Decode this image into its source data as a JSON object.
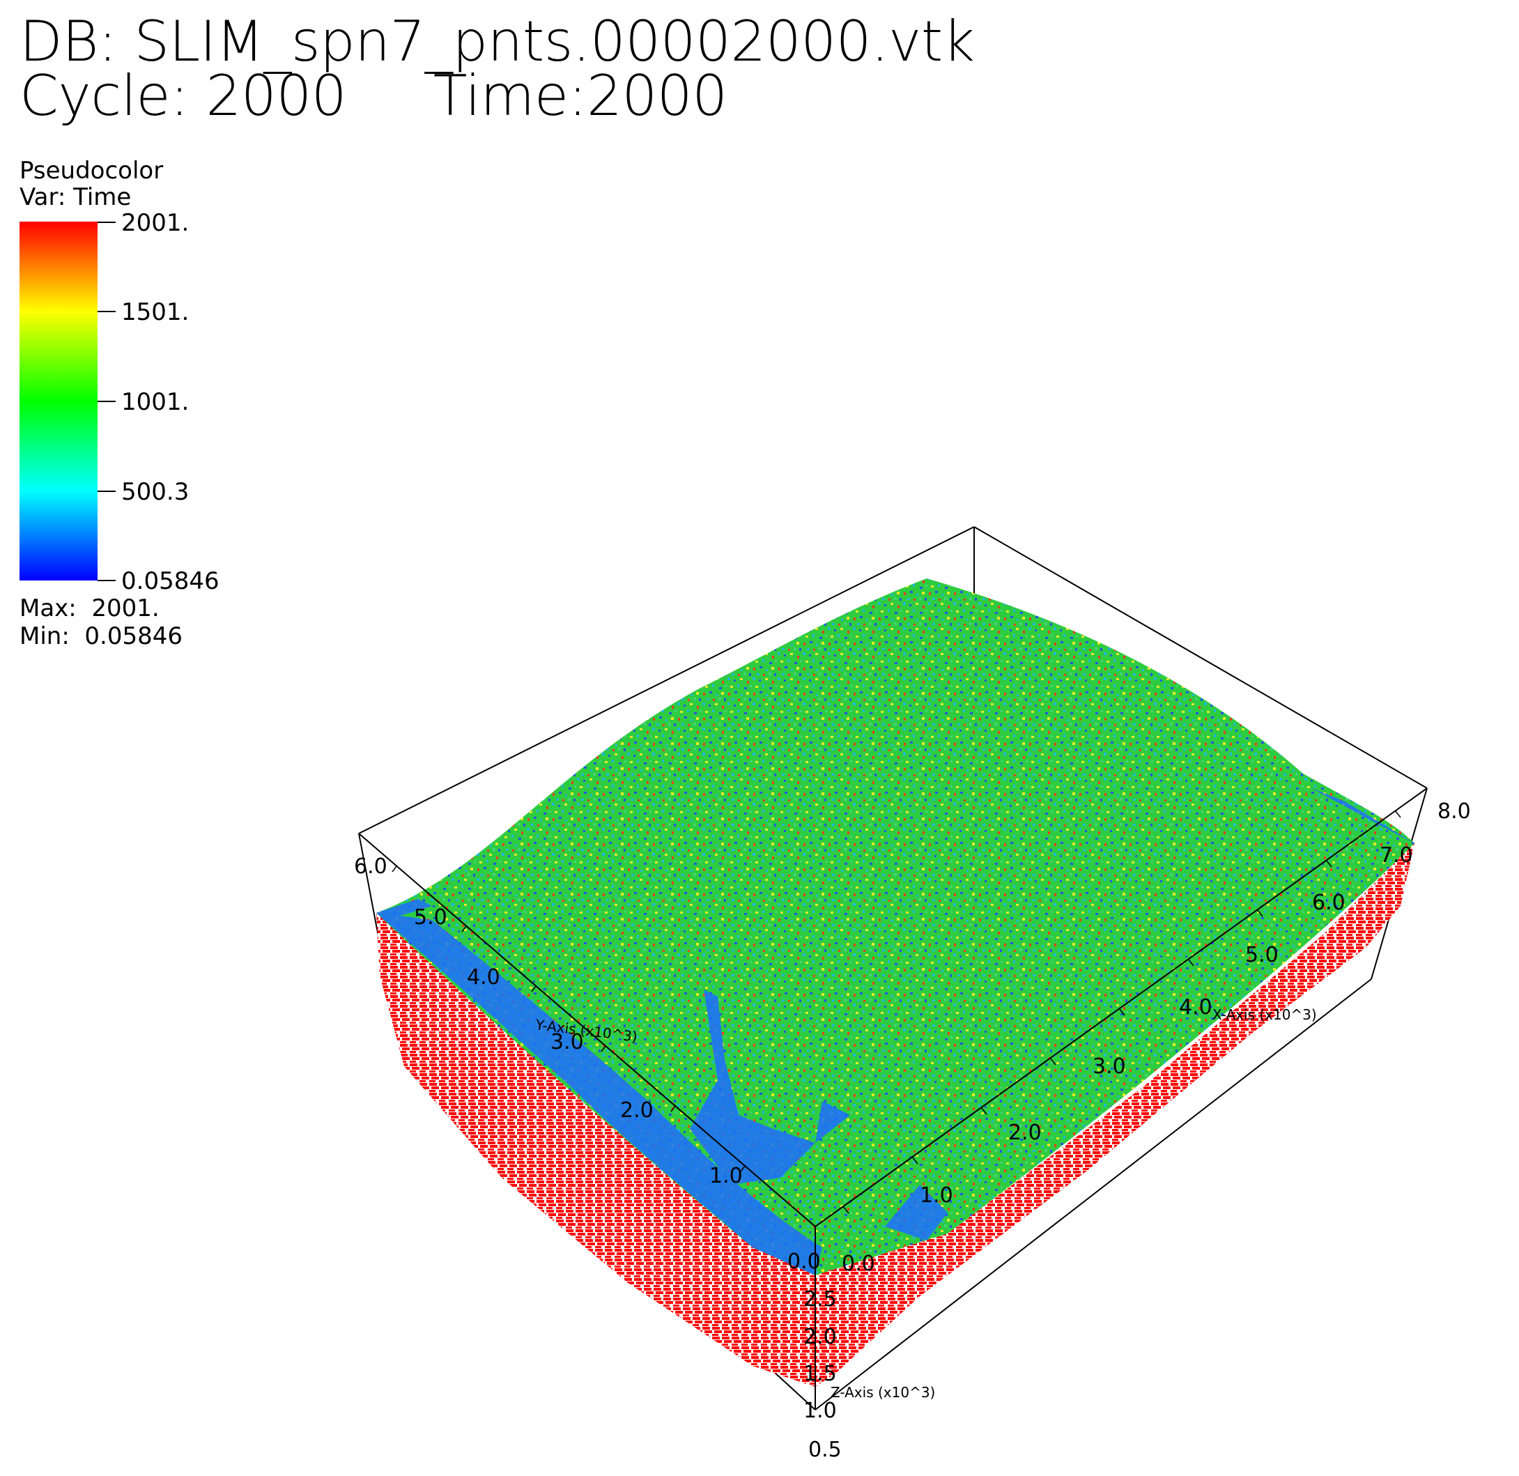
{
  "header": {
    "db_line": "DB: SLIM_spn7_pnts.00002000.vtk",
    "cycle_line": "Cycle: 2000     Time:2000"
  },
  "legend": {
    "plot_type": "Pseudocolor",
    "variable": "Var: Time",
    "ticks": [
      "2001.",
      "1501.",
      "1001.",
      "500.3",
      "0.05846"
    ],
    "max_label": "Max:  2001.",
    "min_label": "Min:  0.05846",
    "colors": [
      "#ff0000",
      "#ffff00",
      "#00ff00",
      "#00ffff",
      "#0000ff"
    ]
  },
  "axes": {
    "x": {
      "title": "X-Axis (x10^3)",
      "ticks": [
        "0.0",
        "1.0",
        "2.0",
        "3.0",
        "4.0",
        "5.0",
        "6.0",
        "7.0",
        "8.0"
      ]
    },
    "y": {
      "title": "Y-Axis (x10^3)",
      "ticks": [
        "0.0",
        "1.0",
        "2.0",
        "3.0",
        "4.0",
        "5.0",
        "6.0"
      ]
    },
    "z": {
      "title": "Z-Axis (x10^3)",
      "ticks": [
        "2.5",
        "2.0",
        "1.5",
        "1.0",
        "0.5"
      ]
    }
  },
  "surface_colors": {
    "top_mix": [
      "#2ecc40",
      "#1fb8e0",
      "#2255ee",
      "#e8e82a",
      "#ff3b1a",
      "#44d47a"
    ],
    "walls": "#ff0000",
    "low_region": "#1e6fff"
  }
}
